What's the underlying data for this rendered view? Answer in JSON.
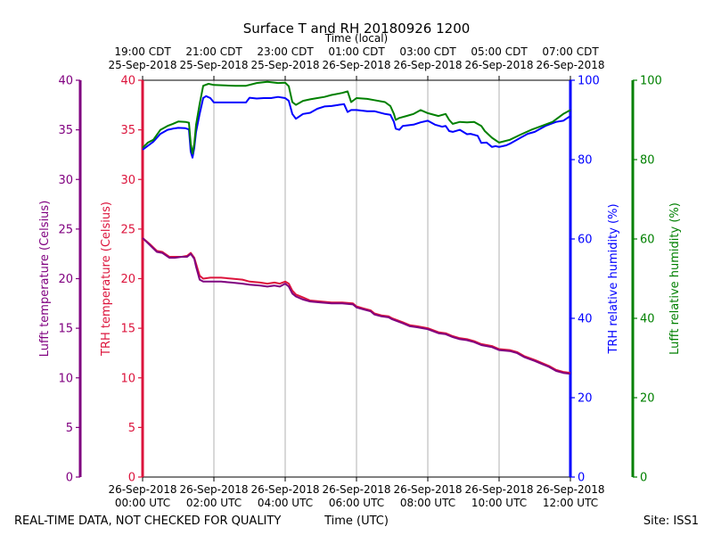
{
  "chart_data": {
    "type": "line",
    "title": "Surface T and RH 20180926 1200",
    "footer": {
      "left": "REAL-TIME DATA, NOT CHECKED FOR QUALITY",
      "center": "Time (UTC)",
      "right": "Site: ISS1"
    },
    "top_axis": {
      "label": "Time (local)",
      "ticks": [
        {
          "hours": 0,
          "line1": "19:00 CDT",
          "line2": "25-Sep-2018"
        },
        {
          "hours": 2,
          "line1": "21:00 CDT",
          "line2": "25-Sep-2018"
        },
        {
          "hours": 4,
          "line1": "23:00 CDT",
          "line2": "25-Sep-2018"
        },
        {
          "hours": 6,
          "line1": "01:00 CDT",
          "line2": "26-Sep-2018"
        },
        {
          "hours": 8,
          "line1": "03:00 CDT",
          "line2": "26-Sep-2018"
        },
        {
          "hours": 10,
          "line1": "05:00 CDT",
          "line2": "26-Sep-2018"
        },
        {
          "hours": 12,
          "line1": "07:00 CDT",
          "line2": "26-Sep-2018"
        }
      ]
    },
    "bottom_axis": {
      "label": "Time (UTC)",
      "ticks": [
        {
          "hours": 0,
          "line1": "26-Sep-2018",
          "line2": "00:00 UTC"
        },
        {
          "hours": 2,
          "line1": "26-Sep-2018",
          "line2": "02:00 UTC"
        },
        {
          "hours": 4,
          "line1": "26-Sep-2018",
          "line2": "04:00 UTC"
        },
        {
          "hours": 6,
          "line1": "26-Sep-2018",
          "line2": "06:00 UTC"
        },
        {
          "hours": 8,
          "line1": "26-Sep-2018",
          "line2": "08:00 UTC"
        },
        {
          "hours": 10,
          "line1": "26-Sep-2018",
          "line2": "10:00 UTC"
        },
        {
          "hours": 12,
          "line1": "26-Sep-2018",
          "line2": "12:00 UTC"
        }
      ]
    },
    "x_range_hours": [
      0,
      12
    ],
    "grid": "vertical",
    "axes": {
      "lufft_temp": {
        "label": "Lufft temperature (Celsius)",
        "range": [
          0,
          40
        ],
        "ticks": [
          0,
          5,
          10,
          15,
          20,
          25,
          30,
          35,
          40
        ],
        "color": "#800080"
      },
      "trh_temp": {
        "label": "TRH temperature (Celsius)",
        "range": [
          0,
          40
        ],
        "ticks": [
          0,
          5,
          10,
          15,
          20,
          25,
          30,
          35,
          40
        ],
        "color": "#dc143c"
      },
      "trh_rh": {
        "label": "TRH relative humidity (%)",
        "range": [
          0,
          100
        ],
        "ticks": [
          0,
          20,
          40,
          60,
          80,
          100
        ],
        "color": "#0000ff"
      },
      "lufft_rh": {
        "label": "Lufft relative humidity (%)",
        "range": [
          0,
          100
        ],
        "ticks": [
          0,
          20,
          40,
          60,
          80,
          100
        ],
        "color": "#008000"
      }
    },
    "series": [
      {
        "name": "TRH relative humidity (%)",
        "axis": "trh_rh",
        "color": "#0000ff",
        "points": [
          [
            0,
            82.5
          ],
          [
            0.15,
            83.5
          ],
          [
            0.3,
            84.5
          ],
          [
            0.5,
            86.5
          ],
          [
            0.7,
            87.5
          ],
          [
            0.85,
            87.8
          ],
          [
            1.0,
            88.0
          ],
          [
            1.2,
            87.9
          ],
          [
            1.3,
            87.6
          ],
          [
            1.35,
            82
          ],
          [
            1.4,
            80.5
          ],
          [
            1.45,
            83
          ],
          [
            1.5,
            87
          ],
          [
            1.6,
            91.5
          ],
          [
            1.7,
            95.5
          ],
          [
            1.78,
            96
          ],
          [
            1.9,
            95.5
          ],
          [
            2.0,
            94.4
          ],
          [
            2.3,
            94.4
          ],
          [
            2.6,
            94.4
          ],
          [
            2.9,
            94.4
          ],
          [
            3.0,
            95.6
          ],
          [
            3.2,
            95.4
          ],
          [
            3.4,
            95.5
          ],
          [
            3.6,
            95.5
          ],
          [
            3.8,
            95.8
          ],
          [
            4.0,
            95.5
          ],
          [
            4.1,
            94.8
          ],
          [
            4.2,
            91.5
          ],
          [
            4.3,
            90.3
          ],
          [
            4.5,
            91.5
          ],
          [
            4.7,
            91.8
          ],
          [
            4.9,
            92.8
          ],
          [
            5.1,
            93.4
          ],
          [
            5.3,
            93.5
          ],
          [
            5.5,
            93.8
          ],
          [
            5.65,
            94.0
          ],
          [
            5.75,
            92.0
          ],
          [
            5.85,
            92.5
          ],
          [
            6.0,
            92.5
          ],
          [
            6.3,
            92.2
          ],
          [
            6.5,
            92.2
          ],
          [
            6.8,
            91.5
          ],
          [
            6.95,
            91.3
          ],
          [
            7.05,
            89.5
          ],
          [
            7.1,
            87.8
          ],
          [
            7.2,
            87.5
          ],
          [
            7.3,
            88.5
          ],
          [
            7.6,
            88.8
          ],
          [
            7.8,
            89.4
          ],
          [
            8.0,
            89.8
          ],
          [
            8.2,
            88.8
          ],
          [
            8.4,
            88.3
          ],
          [
            8.5,
            88.5
          ],
          [
            8.6,
            87.2
          ],
          [
            8.7,
            87.0
          ],
          [
            8.9,
            87.5
          ],
          [
            9.1,
            86.4
          ],
          [
            9.2,
            86.5
          ],
          [
            9.4,
            86.0
          ],
          [
            9.5,
            84.2
          ],
          [
            9.65,
            84.3
          ],
          [
            9.8,
            83.2
          ],
          [
            9.9,
            83.4
          ],
          [
            10.0,
            83.2
          ],
          [
            10.2,
            83.6
          ],
          [
            10.3,
            84.0
          ],
          [
            10.6,
            85.5
          ],
          [
            10.8,
            86.5
          ],
          [
            11.0,
            87.0
          ],
          [
            11.3,
            88.5
          ],
          [
            11.6,
            89.5
          ],
          [
            11.8,
            89.8
          ],
          [
            12,
            91.0
          ]
        ]
      },
      {
        "name": "Lufft relative humidity (%)",
        "axis": "lufft_rh",
        "color": "#008000",
        "points": [
          [
            0,
            83.0
          ],
          [
            0.15,
            84.3
          ],
          [
            0.3,
            85.0
          ],
          [
            0.5,
            87.5
          ],
          [
            0.7,
            88.5
          ],
          [
            0.85,
            89.0
          ],
          [
            1.0,
            89.6
          ],
          [
            1.2,
            89.5
          ],
          [
            1.3,
            89.3
          ],
          [
            1.35,
            84
          ],
          [
            1.4,
            81.5
          ],
          [
            1.45,
            84
          ],
          [
            1.5,
            88.8
          ],
          [
            1.6,
            94.0
          ],
          [
            1.7,
            98.6
          ],
          [
            1.85,
            99.1
          ],
          [
            2.0,
            98.8
          ],
          [
            2.3,
            98.7
          ],
          [
            2.6,
            98.6
          ],
          [
            2.9,
            98.6
          ],
          [
            3.2,
            99.3
          ],
          [
            3.5,
            99.6
          ],
          [
            3.8,
            99.3
          ],
          [
            4.0,
            99.4
          ],
          [
            4.1,
            98.5
          ],
          [
            4.2,
            94.5
          ],
          [
            4.3,
            93.8
          ],
          [
            4.5,
            94.8
          ],
          [
            4.7,
            95.2
          ],
          [
            4.9,
            95.5
          ],
          [
            5.1,
            95.8
          ],
          [
            5.3,
            96.3
          ],
          [
            5.6,
            96.8
          ],
          [
            5.75,
            97.2
          ],
          [
            5.85,
            94.5
          ],
          [
            6.0,
            95.5
          ],
          [
            6.3,
            95.3
          ],
          [
            6.5,
            95.0
          ],
          [
            6.8,
            94.5
          ],
          [
            6.95,
            93.5
          ],
          [
            7.05,
            91.5
          ],
          [
            7.1,
            90.0
          ],
          [
            7.2,
            90.5
          ],
          [
            7.4,
            91.0
          ],
          [
            7.6,
            91.5
          ],
          [
            7.8,
            92.5
          ],
          [
            8.0,
            91.7
          ],
          [
            8.3,
            91.0
          ],
          [
            8.5,
            91.5
          ],
          [
            8.6,
            90.0
          ],
          [
            8.7,
            89.0
          ],
          [
            8.9,
            89.5
          ],
          [
            9.1,
            89.4
          ],
          [
            9.3,
            89.5
          ],
          [
            9.5,
            88.5
          ],
          [
            9.6,
            87.2
          ],
          [
            9.8,
            85.5
          ],
          [
            10.0,
            84.3
          ],
          [
            10.3,
            85.0
          ],
          [
            10.6,
            86.3
          ],
          [
            10.9,
            87.5
          ],
          [
            11.2,
            88.5
          ],
          [
            11.5,
            89.5
          ],
          [
            11.8,
            91.5
          ],
          [
            12,
            92.5
          ]
        ]
      },
      {
        "name": "TRH temperature (Celsius)",
        "axis": "trh_temp",
        "color": "#dc143c",
        "points": [
          [
            0,
            24.1
          ],
          [
            0.2,
            23.5
          ],
          [
            0.4,
            22.8
          ],
          [
            0.55,
            22.7
          ],
          [
            0.75,
            22.2
          ],
          [
            0.9,
            22.2
          ],
          [
            1.1,
            22.2
          ],
          [
            1.25,
            22.3
          ],
          [
            1.35,
            22.6
          ],
          [
            1.45,
            22.1
          ],
          [
            1.5,
            21.5
          ],
          [
            1.6,
            20.3
          ],
          [
            1.7,
            20.0
          ],
          [
            1.9,
            20.1
          ],
          [
            2.2,
            20.1
          ],
          [
            2.5,
            20.0
          ],
          [
            2.8,
            19.9
          ],
          [
            3.0,
            19.7
          ],
          [
            3.3,
            19.6
          ],
          [
            3.5,
            19.5
          ],
          [
            3.7,
            19.6
          ],
          [
            3.85,
            19.5
          ],
          [
            4.0,
            19.7
          ],
          [
            4.1,
            19.5
          ],
          [
            4.2,
            18.8
          ],
          [
            4.3,
            18.4
          ],
          [
            4.5,
            18.1
          ],
          [
            4.7,
            17.8
          ],
          [
            5.0,
            17.7
          ],
          [
            5.3,
            17.6
          ],
          [
            5.6,
            17.6
          ],
          [
            5.9,
            17.5
          ],
          [
            6.0,
            17.2
          ],
          [
            6.2,
            17.0
          ],
          [
            6.4,
            16.8
          ],
          [
            6.5,
            16.5
          ],
          [
            6.7,
            16.3
          ],
          [
            6.9,
            16.2
          ],
          [
            7.0,
            16.0
          ],
          [
            7.3,
            15.6
          ],
          [
            7.5,
            15.3
          ],
          [
            7.7,
            15.2
          ],
          [
            8.0,
            15.0
          ],
          [
            8.3,
            14.6
          ],
          [
            8.5,
            14.5
          ],
          [
            8.7,
            14.2
          ],
          [
            8.9,
            14.0
          ],
          [
            9.1,
            13.9
          ],
          [
            9.3,
            13.7
          ],
          [
            9.5,
            13.4
          ],
          [
            9.8,
            13.2
          ],
          [
            10.0,
            12.9
          ],
          [
            10.3,
            12.8
          ],
          [
            10.5,
            12.6
          ],
          [
            10.7,
            12.2
          ],
          [
            11.0,
            11.8
          ],
          [
            11.2,
            11.5
          ],
          [
            11.4,
            11.2
          ],
          [
            11.6,
            10.8
          ],
          [
            11.8,
            10.6
          ],
          [
            12,
            10.5
          ]
        ]
      },
      {
        "name": "Lufft temperature (Celsius)",
        "axis": "lufft_temp",
        "color": "#800080",
        "points": [
          [
            0,
            24.1
          ],
          [
            0.2,
            23.4
          ],
          [
            0.4,
            22.7
          ],
          [
            0.55,
            22.6
          ],
          [
            0.75,
            22.1
          ],
          [
            0.9,
            22.1
          ],
          [
            1.1,
            22.2
          ],
          [
            1.25,
            22.2
          ],
          [
            1.35,
            22.5
          ],
          [
            1.45,
            22.0
          ],
          [
            1.5,
            21.2
          ],
          [
            1.6,
            19.9
          ],
          [
            1.7,
            19.7
          ],
          [
            1.9,
            19.7
          ],
          [
            2.2,
            19.7
          ],
          [
            2.5,
            19.6
          ],
          [
            2.8,
            19.5
          ],
          [
            3.0,
            19.4
          ],
          [
            3.3,
            19.3
          ],
          [
            3.5,
            19.2
          ],
          [
            3.7,
            19.3
          ],
          [
            3.85,
            19.2
          ],
          [
            4.0,
            19.5
          ],
          [
            4.1,
            19.2
          ],
          [
            4.2,
            18.5
          ],
          [
            4.3,
            18.2
          ],
          [
            4.5,
            17.9
          ],
          [
            4.7,
            17.7
          ],
          [
            5.0,
            17.6
          ],
          [
            5.3,
            17.5
          ],
          [
            5.6,
            17.5
          ],
          [
            5.9,
            17.4
          ],
          [
            6.0,
            17.1
          ],
          [
            6.2,
            16.9
          ],
          [
            6.4,
            16.7
          ],
          [
            6.5,
            16.4
          ],
          [
            6.7,
            16.2
          ],
          [
            6.9,
            16.1
          ],
          [
            7.0,
            15.9
          ],
          [
            7.3,
            15.5
          ],
          [
            7.5,
            15.2
          ],
          [
            7.7,
            15.1
          ],
          [
            8.0,
            14.9
          ],
          [
            8.3,
            14.5
          ],
          [
            8.5,
            14.4
          ],
          [
            8.7,
            14.1
          ],
          [
            8.9,
            13.9
          ],
          [
            9.1,
            13.8
          ],
          [
            9.3,
            13.6
          ],
          [
            9.5,
            13.3
          ],
          [
            9.8,
            13.1
          ],
          [
            10.0,
            12.8
          ],
          [
            10.3,
            12.7
          ],
          [
            10.5,
            12.5
          ],
          [
            10.7,
            12.1
          ],
          [
            11.0,
            11.7
          ],
          [
            11.2,
            11.4
          ],
          [
            11.4,
            11.1
          ],
          [
            11.6,
            10.7
          ],
          [
            11.8,
            10.5
          ],
          [
            12,
            10.4
          ]
        ]
      }
    ]
  }
}
